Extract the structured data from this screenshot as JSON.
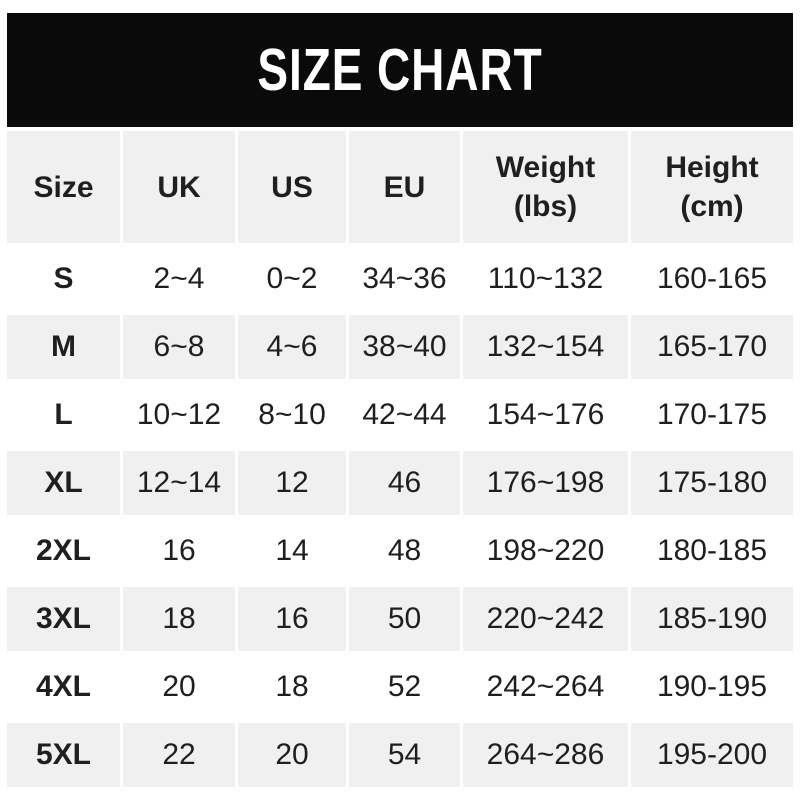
{
  "chart_data": {
    "type": "table",
    "title": "SIZE CHART",
    "columns": [
      {
        "label": "Size"
      },
      {
        "label": "UK"
      },
      {
        "label": "US"
      },
      {
        "label": "EU"
      },
      {
        "label": "Weight",
        "sub": "(lbs)"
      },
      {
        "label": "Height",
        "sub": "(cm)"
      }
    ],
    "rows": [
      {
        "size": "S",
        "uk": "2~4",
        "us": "0~2",
        "eu": "34~36",
        "weight": "110~132",
        "height": "160-165"
      },
      {
        "size": "M",
        "uk": "6~8",
        "us": "4~6",
        "eu": "38~40",
        "weight": "132~154",
        "height": "165-170"
      },
      {
        "size": "L",
        "uk": "10~12",
        "us": "8~10",
        "eu": "42~44",
        "weight": "154~176",
        "height": "170-175"
      },
      {
        "size": "XL",
        "uk": "12~14",
        "us": "12",
        "eu": "46",
        "weight": "176~198",
        "height": "175-180"
      },
      {
        "size": "2XL",
        "uk": "16",
        "us": "14",
        "eu": "48",
        "weight": "198~220",
        "height": "180-185"
      },
      {
        "size": "3XL",
        "uk": "18",
        "us": "16",
        "eu": "50",
        "weight": "220~242",
        "height": "185-190"
      },
      {
        "size": "4XL",
        "uk": "20",
        "us": "18",
        "eu": "52",
        "weight": "242~264",
        "height": "190-195"
      },
      {
        "size": "5XL",
        "uk": "22",
        "us": "20",
        "eu": "54",
        "weight": "264~286",
        "height": "195-200"
      }
    ]
  },
  "colors": {
    "banner_bg": "#0a0a0a",
    "banner_text": "#ffffff",
    "row_alt_bg": "#f0f0f0",
    "text": "#1f1f1f"
  }
}
